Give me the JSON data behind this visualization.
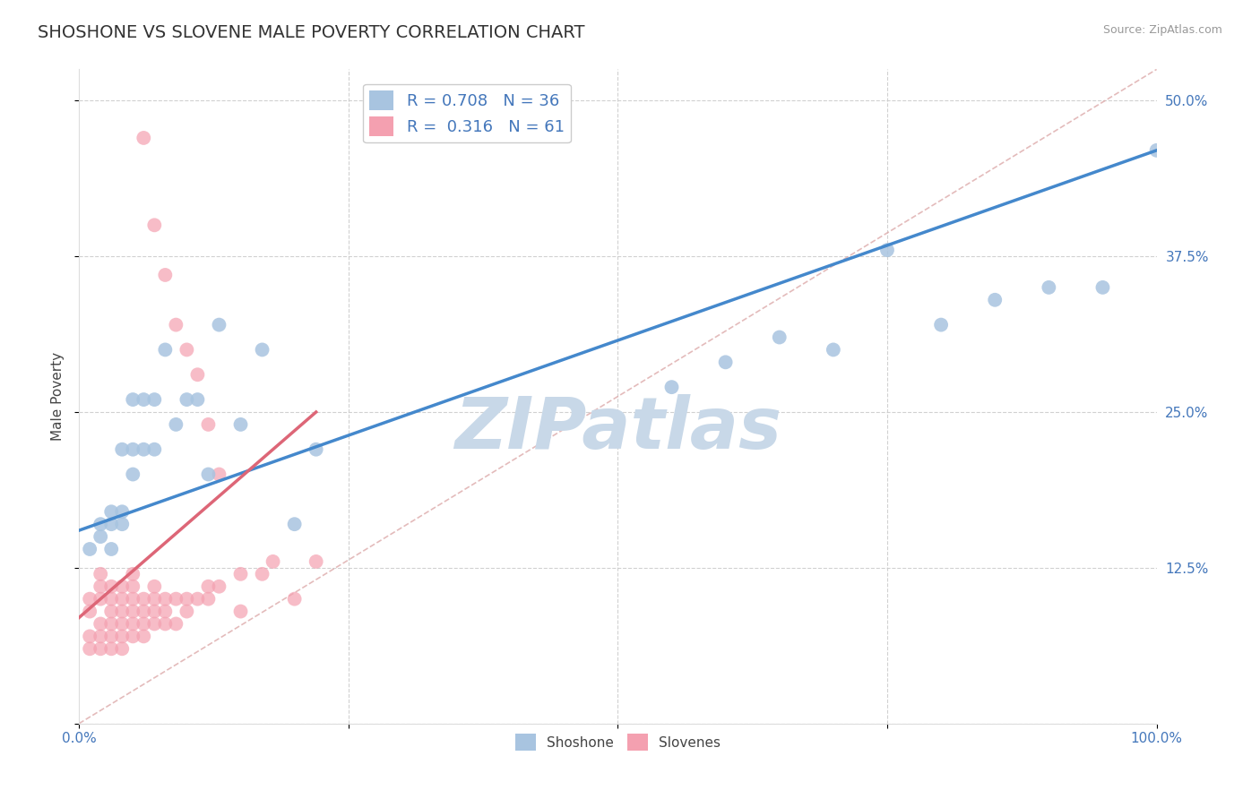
{
  "title": "SHOSHONE VS SLOVENE MALE POVERTY CORRELATION CHART",
  "source": "Source: ZipAtlas.com",
  "xlabel": "",
  "ylabel": "Male Poverty",
  "xlim": [
    0,
    1.0
  ],
  "ylim": [
    0,
    0.525
  ],
  "xticks": [
    0.0,
    0.25,
    0.5,
    0.75,
    1.0
  ],
  "xticklabels": [
    "0.0%",
    "",
    "",
    "",
    "100.0%"
  ],
  "yticks": [
    0.0,
    0.125,
    0.25,
    0.375,
    0.5
  ],
  "yticklabels_right": [
    "",
    "12.5%",
    "25.0%",
    "37.5%",
    "50.0%"
  ],
  "shoshone_R": 0.708,
  "shoshone_N": 36,
  "slovene_R": 0.316,
  "slovene_N": 61,
  "shoshone_color": "#a8c4e0",
  "slovene_color": "#f4a0b0",
  "shoshone_line_color": "#4488cc",
  "slovene_line_color": "#dd6677",
  "diagonal_color": "#ccaaaa",
  "background_color": "#ffffff",
  "shoshone_x": [
    0.01,
    0.02,
    0.02,
    0.03,
    0.03,
    0.03,
    0.04,
    0.04,
    0.04,
    0.05,
    0.05,
    0.05,
    0.06,
    0.06,
    0.07,
    0.07,
    0.08,
    0.09,
    0.1,
    0.11,
    0.12,
    0.13,
    0.15,
    0.17,
    0.2,
    0.22,
    0.55,
    0.6,
    0.65,
    0.7,
    0.75,
    0.8,
    0.85,
    0.9,
    0.95,
    1.0
  ],
  "shoshone_y": [
    0.14,
    0.15,
    0.16,
    0.17,
    0.16,
    0.14,
    0.16,
    0.22,
    0.17,
    0.26,
    0.2,
    0.22,
    0.26,
    0.22,
    0.22,
    0.26,
    0.3,
    0.24,
    0.26,
    0.26,
    0.2,
    0.32,
    0.24,
    0.3,
    0.16,
    0.22,
    0.27,
    0.29,
    0.31,
    0.3,
    0.38,
    0.32,
    0.34,
    0.35,
    0.35,
    0.46
  ],
  "slovene_x": [
    0.01,
    0.01,
    0.01,
    0.01,
    0.02,
    0.02,
    0.02,
    0.02,
    0.02,
    0.02,
    0.03,
    0.03,
    0.03,
    0.03,
    0.03,
    0.03,
    0.04,
    0.04,
    0.04,
    0.04,
    0.04,
    0.04,
    0.05,
    0.05,
    0.05,
    0.05,
    0.05,
    0.05,
    0.06,
    0.06,
    0.06,
    0.06,
    0.07,
    0.07,
    0.07,
    0.07,
    0.08,
    0.08,
    0.08,
    0.09,
    0.09,
    0.1,
    0.1,
    0.11,
    0.12,
    0.12,
    0.13,
    0.15,
    0.15,
    0.17,
    0.18,
    0.2,
    0.22,
    0.06,
    0.07,
    0.08,
    0.09,
    0.1,
    0.11,
    0.12,
    0.13
  ],
  "slovene_y": [
    0.06,
    0.07,
    0.09,
    0.1,
    0.06,
    0.07,
    0.08,
    0.1,
    0.11,
    0.12,
    0.06,
    0.07,
    0.08,
    0.09,
    0.1,
    0.11,
    0.06,
    0.07,
    0.08,
    0.09,
    0.1,
    0.11,
    0.07,
    0.08,
    0.09,
    0.1,
    0.11,
    0.12,
    0.07,
    0.08,
    0.09,
    0.1,
    0.08,
    0.09,
    0.1,
    0.11,
    0.08,
    0.09,
    0.1,
    0.08,
    0.1,
    0.09,
    0.1,
    0.1,
    0.1,
    0.11,
    0.11,
    0.09,
    0.12,
    0.12,
    0.13,
    0.1,
    0.13,
    0.47,
    0.4,
    0.36,
    0.32,
    0.3,
    0.28,
    0.24,
    0.2
  ],
  "watermark": "ZIPatlas",
  "watermark_color": "#c8d8e8",
  "title_fontsize": 14,
  "axis_label_fontsize": 11,
  "tick_fontsize": 11,
  "legend_fontsize": 13,
  "shoshone_line_x0": 0.0,
  "shoshone_line_y0": 0.155,
  "shoshone_line_x1": 1.0,
  "shoshone_line_y1": 0.46,
  "slovene_line_x0": 0.0,
  "slovene_line_y0": 0.085,
  "slovene_line_x1": 0.22,
  "slovene_line_y1": 0.25
}
